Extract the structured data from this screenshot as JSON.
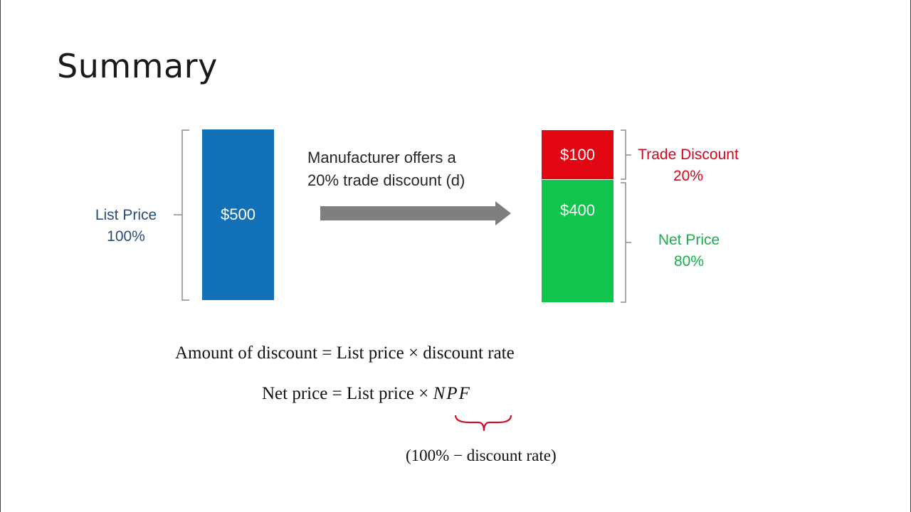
{
  "slide": {
    "title": "Summary"
  },
  "diagram": {
    "list_bar": {
      "value": "$500",
      "label_line1": "List Price",
      "label_line2": "100%"
    },
    "arrow_text": {
      "line1": "Manufacturer offers a",
      "line2": "20% trade discount (d)"
    },
    "discount_bar": {
      "value": "$100",
      "label_line1": "Trade Discount",
      "label_line2": "20%"
    },
    "net_bar": {
      "value": "$400",
      "label_line1": "Net Price",
      "label_line2": "80%"
    }
  },
  "formulas": {
    "amount_of_discount": "Amount of discount = List price × discount rate",
    "net_price_prefix": "Net price = List price × ",
    "net_price_npf": "NPF",
    "npf_definition": "(100% − discount rate)"
  },
  "colors": {
    "list_blue": "#1170b8",
    "discount_red": "#e20613",
    "net_green": "#10c44c",
    "bracket_red": "#c8102e"
  }
}
